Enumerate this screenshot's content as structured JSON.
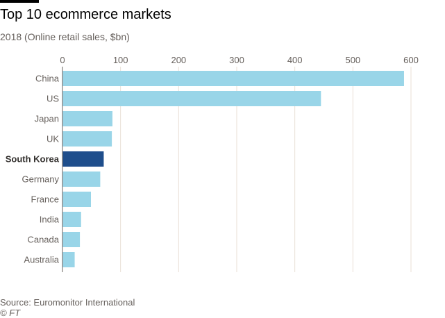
{
  "source": "Source: Euromonitor International",
  "credit": "© FT",
  "colors": {
    "bar": "#99d5e8",
    "highlight_bar": "#1f4e8c",
    "grid": "#e9dfd6",
    "axis": "#66605c"
  },
  "chart_data": {
    "type": "bar",
    "orientation": "horizontal",
    "title": "Top 10 ecommerce markets",
    "subtitle": "2018 (Online retail sales, $bn)",
    "xlabel": "",
    "ylabel": "",
    "xlim": [
      0,
      600
    ],
    "ticks": [
      0,
      100,
      200,
      300,
      400,
      500,
      600
    ],
    "grid": true,
    "categories": [
      "China",
      "US",
      "Japan",
      "UK",
      "South Korea",
      "Germany",
      "France",
      "India",
      "Canada",
      "Australia"
    ],
    "values": [
      588,
      445,
      86,
      85,
      71,
      65,
      49,
      32,
      30,
      21
    ],
    "highlight": "South Korea"
  }
}
